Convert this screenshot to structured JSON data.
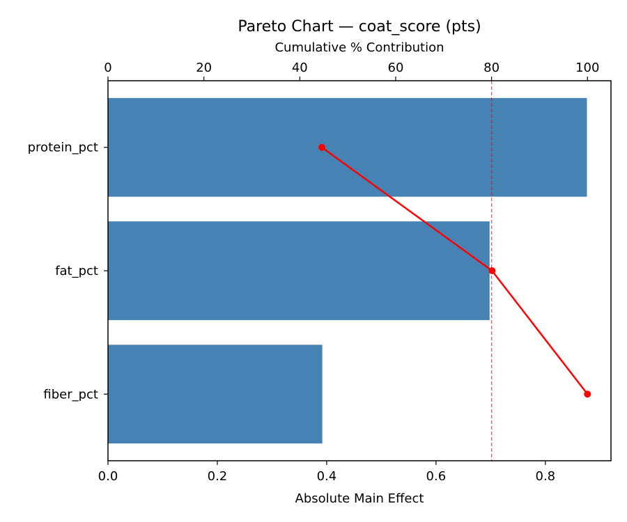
{
  "chart_data": {
    "type": "bar",
    "orientation": "horizontal",
    "title": "Pareto Chart — coat_score (pts)",
    "xlabel": "Absolute Main Effect",
    "x2label": "Cumulative % Contribution",
    "categories": [
      "protein_pct",
      "fat_pct",
      "fiber_pct"
    ],
    "values": [
      0.876,
      0.698,
      0.392
    ],
    "cumulative_pct": [
      44.6,
      80.1,
      100.0
    ],
    "threshold_pct": 80,
    "xlim": [
      0,
      0.92
    ],
    "x2lim": [
      0,
      104.9
    ],
    "xticks": [
      "0.0",
      "0.2",
      "0.4",
      "0.6",
      "0.8"
    ],
    "x2ticks": [
      "0",
      "20",
      "40",
      "60",
      "80",
      "100"
    ],
    "grid": false,
    "colors": {
      "bar": "#4682b4",
      "cumulative": "#ff0000",
      "threshold": "#ff0000"
    }
  }
}
